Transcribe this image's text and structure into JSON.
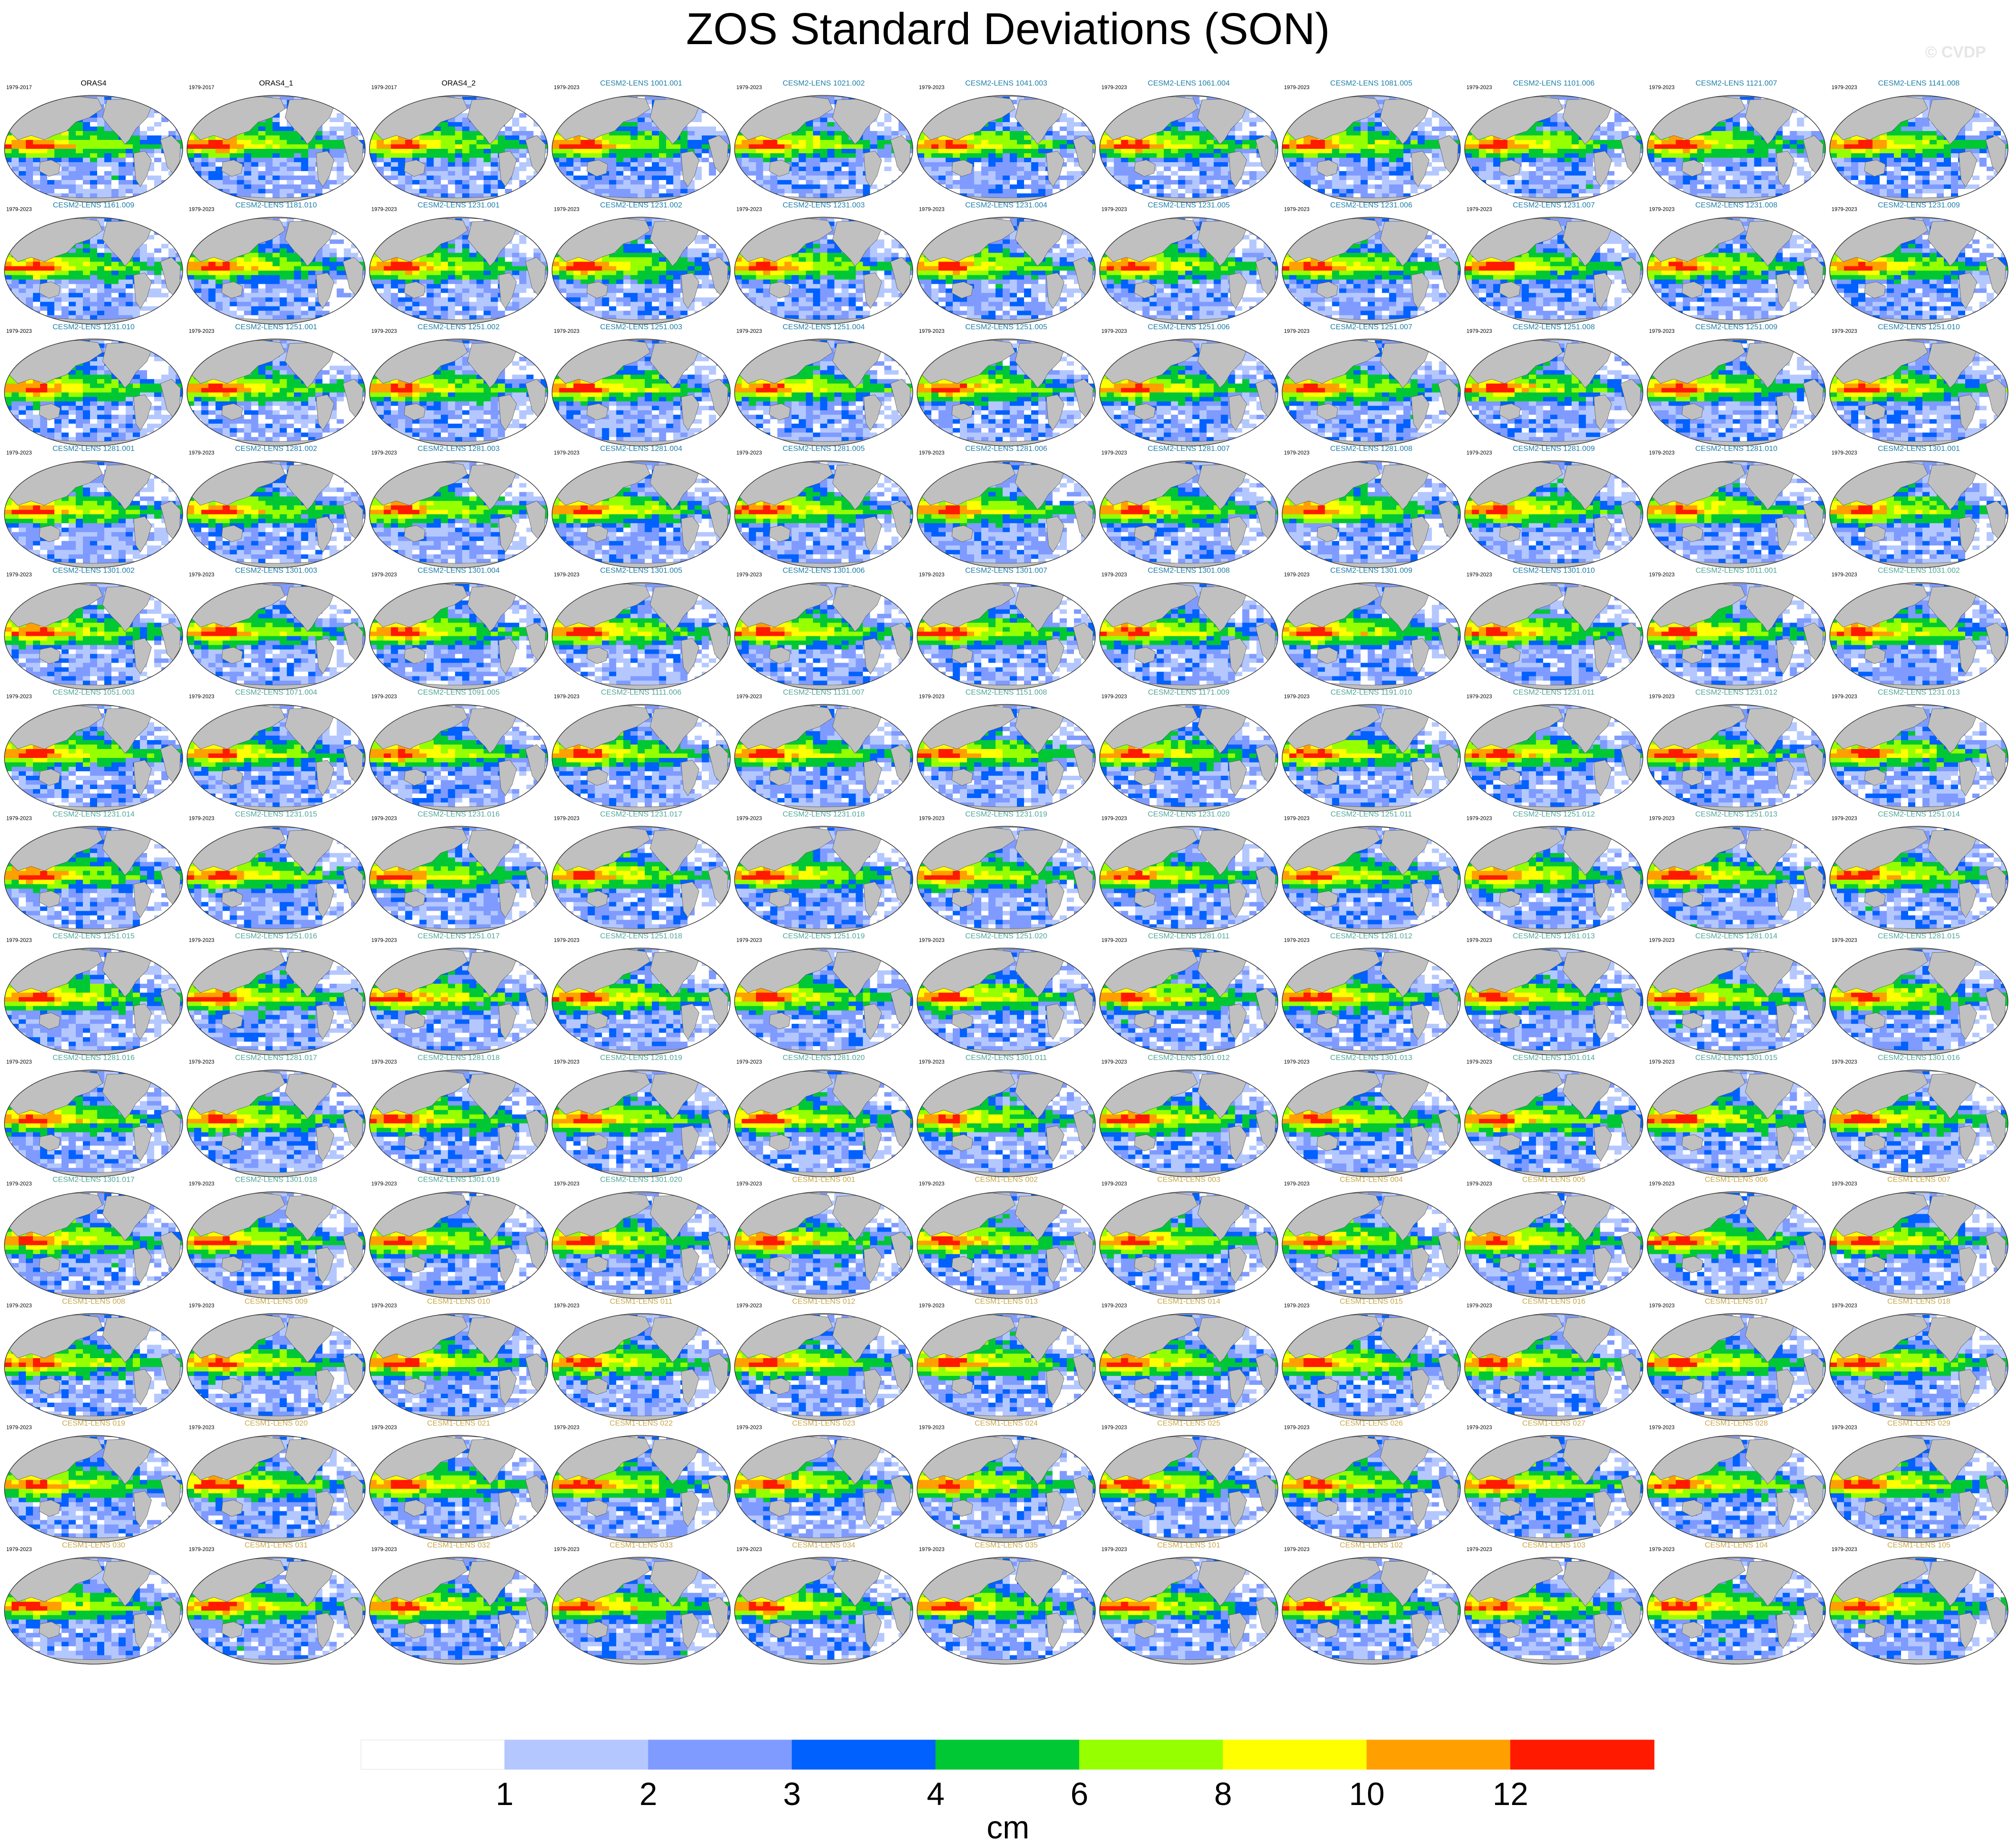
{
  "title": "ZOS Standard Deviations (SON)",
  "watermark": "© CVDP",
  "colors": {
    "obs_title": "#000000",
    "cesm2_title": "#1f7fa8",
    "cesm1_title": "#c8a84a",
    "cesm2_faded_title": "#4fa89a",
    "land": "#c0c0c0",
    "missing": "#ffffff"
  },
  "chart_data": {
    "type": "heatmap",
    "field": "ZOS standard deviation (SON), global maps",
    "grid": {
      "rows": 13,
      "cols": 11
    },
    "colorbar": {
      "unit_label": "cm",
      "levels": [
        1,
        2,
        3,
        4,
        6,
        8,
        10,
        12
      ],
      "tick_labels": [
        "1",
        "2",
        "3",
        "4",
        "6",
        "8",
        "10",
        "12"
      ],
      "colors": [
        "#ffffff",
        "#b4c8ff",
        "#7f9bff",
        "#0061ff",
        "#00c834",
        "#96ff00",
        "#ffff00",
        "#ffa000",
        "#ff1a00"
      ]
    },
    "panels": [
      {
        "title": "ORAS4",
        "period": "1979-2017",
        "group": "obs"
      },
      {
        "title": "ORAS4_1",
        "period": "1979-2017",
        "group": "obs"
      },
      {
        "title": "ORAS4_2",
        "period": "1979-2017",
        "group": "obs"
      },
      {
        "title": "CESM2-LENS 1001.001",
        "period": "1979-2023",
        "group": "cesm2"
      },
      {
        "title": "CESM2-LENS 1021.002",
        "period": "1979-2023",
        "group": "cesm2"
      },
      {
        "title": "CESM2-LENS 1041.003",
        "period": "1979-2023",
        "group": "cesm2"
      },
      {
        "title": "CESM2-LENS 1061.004",
        "period": "1979-2023",
        "group": "cesm2"
      },
      {
        "title": "CESM2-LENS 1081.005",
        "period": "1979-2023",
        "group": "cesm2"
      },
      {
        "title": "CESM2-LENS 1101.006",
        "period": "1979-2023",
        "group": "cesm2"
      },
      {
        "title": "CESM2-LENS 1121.007",
        "period": "1979-2023",
        "group": "cesm2"
      },
      {
        "title": "CESM2-LENS 1141.008",
        "period": "1979-2023",
        "group": "cesm2"
      },
      {
        "title": "CESM2-LENS 1161.009",
        "period": "1979-2023",
        "group": "cesm2"
      },
      {
        "title": "CESM2-LENS 1181.010",
        "period": "1979-2023",
        "group": "cesm2"
      },
      {
        "title": "CESM2-LENS 1231.001",
        "period": "1979-2023",
        "group": "cesm2"
      },
      {
        "title": "CESM2-LENS 1231.002",
        "period": "1979-2023",
        "group": "cesm2"
      },
      {
        "title": "CESM2-LENS 1231.003",
        "period": "1979-2023",
        "group": "cesm2"
      },
      {
        "title": "CESM2-LENS 1231.004",
        "period": "1979-2023",
        "group": "cesm2"
      },
      {
        "title": "CESM2-LENS 1231.005",
        "period": "1979-2023",
        "group": "cesm2"
      },
      {
        "title": "CESM2-LENS 1231.006",
        "period": "1979-2023",
        "group": "cesm2"
      },
      {
        "title": "CESM2-LENS 1231.007",
        "period": "1979-2023",
        "group": "cesm2"
      },
      {
        "title": "CESM2-LENS 1231.008",
        "period": "1979-2023",
        "group": "cesm2"
      },
      {
        "title": "CESM2-LENS 1231.009",
        "period": "1979-2023",
        "group": "cesm2"
      },
      {
        "title": "CESM2-LENS 1231.010",
        "period": "1979-2023",
        "group": "cesm2"
      },
      {
        "title": "CESM2-LENS 1251.001",
        "period": "1979-2023",
        "group": "cesm2"
      },
      {
        "title": "CESM2-LENS 1251.002",
        "period": "1979-2023",
        "group": "cesm2"
      },
      {
        "title": "CESM2-LENS 1251.003",
        "period": "1979-2023",
        "group": "cesm2"
      },
      {
        "title": "CESM2-LENS 1251.004",
        "period": "1979-2023",
        "group": "cesm2"
      },
      {
        "title": "CESM2-LENS 1251.005",
        "period": "1979-2023",
        "group": "cesm2"
      },
      {
        "title": "CESM2-LENS 1251.006",
        "period": "1979-2023",
        "group": "cesm2"
      },
      {
        "title": "CESM2-LENS 1251.007",
        "period": "1979-2023",
        "group": "cesm2"
      },
      {
        "title": "CESM2-LENS 1251.008",
        "period": "1979-2023",
        "group": "cesm2"
      },
      {
        "title": "CESM2-LENS 1251.009",
        "period": "1979-2023",
        "group": "cesm2"
      },
      {
        "title": "CESM2-LENS 1251.010",
        "period": "1979-2023",
        "group": "cesm2"
      },
      {
        "title": "CESM2-LENS 1281.001",
        "period": "1979-2023",
        "group": "cesm2"
      },
      {
        "title": "CESM2-LENS 1281.002",
        "period": "1979-2023",
        "group": "cesm2"
      },
      {
        "title": "CESM2-LENS 1281.003",
        "period": "1979-2023",
        "group": "cesm2"
      },
      {
        "title": "CESM2-LENS 1281.004",
        "period": "1979-2023",
        "group": "cesm2"
      },
      {
        "title": "CESM2-LENS 1281.005",
        "period": "1979-2023",
        "group": "cesm2"
      },
      {
        "title": "CESM2-LENS 1281.006",
        "period": "1979-2023",
        "group": "cesm2"
      },
      {
        "title": "CESM2-LENS 1281.007",
        "period": "1979-2023",
        "group": "cesm2"
      },
      {
        "title": "CESM2-LENS 1281.008",
        "period": "1979-2023",
        "group": "cesm2"
      },
      {
        "title": "CESM2-LENS 1281.009",
        "period": "1979-2023",
        "group": "cesm2"
      },
      {
        "title": "CESM2-LENS 1281.010",
        "period": "1979-2023",
        "group": "cesm2"
      },
      {
        "title": "CESM2-LENS 1301.001",
        "period": "1979-2023",
        "group": "cesm2"
      },
      {
        "title": "CESM2-LENS 1301.002",
        "period": "1979-2023",
        "group": "cesm2"
      },
      {
        "title": "CESM2-LENS 1301.003",
        "period": "1979-2023",
        "group": "cesm2"
      },
      {
        "title": "CESM2-LENS 1301.004",
        "period": "1979-2023",
        "group": "cesm2"
      },
      {
        "title": "CESM2-LENS 1301.005",
        "period": "1979-2023",
        "group": "cesm2"
      },
      {
        "title": "CESM2-LENS 1301.006",
        "period": "1979-2023",
        "group": "cesm2"
      },
      {
        "title": "CESM2-LENS 1301.007",
        "period": "1979-2023",
        "group": "cesm2"
      },
      {
        "title": "CESM2-LENS 1301.008",
        "period": "1979-2023",
        "group": "cesm2"
      },
      {
        "title": "CESM2-LENS 1301.009",
        "period": "1979-2023",
        "group": "cesm2"
      },
      {
        "title": "CESM2-LENS 1301.010",
        "period": "1979-2023",
        "group": "cesm2"
      },
      {
        "title": "CESM2-LENS 1011.001",
        "period": "1979-2023",
        "group": "cesm2b"
      },
      {
        "title": "CESM2-LENS 1031.002",
        "period": "1979-2023",
        "group": "cesm2b"
      },
      {
        "title": "CESM2-LENS 1051.003",
        "period": "1979-2023",
        "group": "cesm2b"
      },
      {
        "title": "CESM2-LENS 1071.004",
        "period": "1979-2023",
        "group": "cesm2b"
      },
      {
        "title": "CESM2-LENS 1091.005",
        "period": "1979-2023",
        "group": "cesm2b"
      },
      {
        "title": "CESM2-LENS 1111.006",
        "period": "1979-2023",
        "group": "cesm2b"
      },
      {
        "title": "CESM2-LENS 1131.007",
        "period": "1979-2023",
        "group": "cesm2b"
      },
      {
        "title": "CESM2-LENS 1151.008",
        "period": "1979-2023",
        "group": "cesm2b"
      },
      {
        "title": "CESM2-LENS 1171.009",
        "period": "1979-2023",
        "group": "cesm2b"
      },
      {
        "title": "CESM2-LENS 1191.010",
        "period": "1979-2023",
        "group": "cesm2b"
      },
      {
        "title": "CESM2-LENS 1231.011",
        "period": "1979-2023",
        "group": "cesm2b"
      },
      {
        "title": "CESM2-LENS 1231.012",
        "period": "1979-2023",
        "group": "cesm2b"
      },
      {
        "title": "CESM2-LENS 1231.013",
        "period": "1979-2023",
        "group": "cesm2b"
      },
      {
        "title": "CESM2-LENS 1231.014",
        "period": "1979-2023",
        "group": "cesm2b"
      },
      {
        "title": "CESM2-LENS 1231.015",
        "period": "1979-2023",
        "group": "cesm2b"
      },
      {
        "title": "CESM2-LENS 1231.016",
        "period": "1979-2023",
        "group": "cesm2b"
      },
      {
        "title": "CESM2-LENS 1231.017",
        "period": "1979-2023",
        "group": "cesm2b"
      },
      {
        "title": "CESM2-LENS 1231.018",
        "period": "1979-2023",
        "group": "cesm2b"
      },
      {
        "title": "CESM2-LENS 1231.019",
        "period": "1979-2023",
        "group": "cesm2b"
      },
      {
        "title": "CESM2-LENS 1231.020",
        "period": "1979-2023",
        "group": "cesm2b"
      },
      {
        "title": "CESM2-LENS 1251.011",
        "period": "1979-2023",
        "group": "cesm2b"
      },
      {
        "title": "CESM2-LENS 1251.012",
        "period": "1979-2023",
        "group": "cesm2b"
      },
      {
        "title": "CESM2-LENS 1251.013",
        "period": "1979-2023",
        "group": "cesm2b"
      },
      {
        "title": "CESM2-LENS 1251.014",
        "period": "1979-2023",
        "group": "cesm2b"
      },
      {
        "title": "CESM2-LENS 1251.015",
        "period": "1979-2023",
        "group": "cesm2b"
      },
      {
        "title": "CESM2-LENS 1251.016",
        "period": "1979-2023",
        "group": "cesm2b"
      },
      {
        "title": "CESM2-LENS 1251.017",
        "period": "1979-2023",
        "group": "cesm2b"
      },
      {
        "title": "CESM2-LENS 1251.018",
        "period": "1979-2023",
        "group": "cesm2b"
      },
      {
        "title": "CESM2-LENS 1251.019",
        "period": "1979-2023",
        "group": "cesm2b"
      },
      {
        "title": "CESM2-LENS 1251.020",
        "period": "1979-2023",
        "group": "cesm2b"
      },
      {
        "title": "CESM2-LENS 1281.011",
        "period": "1979-2023",
        "group": "cesm2b"
      },
      {
        "title": "CESM2-LENS 1281.012",
        "period": "1979-2023",
        "group": "cesm2b"
      },
      {
        "title": "CESM2-LENS 1281.013",
        "period": "1979-2023",
        "group": "cesm2b"
      },
      {
        "title": "CESM2-LENS 1281.014",
        "period": "1979-2023",
        "group": "cesm2b"
      },
      {
        "title": "CESM2-LENS 1281.015",
        "period": "1979-2023",
        "group": "cesm2b"
      },
      {
        "title": "CESM2-LENS 1281.016",
        "period": "1979-2023",
        "group": "cesm2b"
      },
      {
        "title": "CESM2-LENS 1281.017",
        "period": "1979-2023",
        "group": "cesm2b"
      },
      {
        "title": "CESM2-LENS 1281.018",
        "period": "1979-2023",
        "group": "cesm2b"
      },
      {
        "title": "CESM2-LENS 1281.019",
        "period": "1979-2023",
        "group": "cesm2b"
      },
      {
        "title": "CESM2-LENS 1281.020",
        "period": "1979-2023",
        "group": "cesm2b"
      },
      {
        "title": "CESM2-LENS 1301.011",
        "period": "1979-2023",
        "group": "cesm2b"
      },
      {
        "title": "CESM2-LENS 1301.012",
        "period": "1979-2023",
        "group": "cesm2b"
      },
      {
        "title": "CESM2-LENS 1301.013",
        "period": "1979-2023",
        "group": "cesm2b"
      },
      {
        "title": "CESM2-LENS 1301.014",
        "period": "1979-2023",
        "group": "cesm2b"
      },
      {
        "title": "CESM2-LENS 1301.015",
        "period": "1979-2023",
        "group": "cesm2b"
      },
      {
        "title": "CESM2-LENS 1301.016",
        "period": "1979-2023",
        "group": "cesm2b"
      },
      {
        "title": "CESM2-LENS 1301.017",
        "period": "1979-2023",
        "group": "cesm2b"
      },
      {
        "title": "CESM2-LENS 1301.018",
        "period": "1979-2023",
        "group": "cesm2b"
      },
      {
        "title": "CESM2-LENS 1301.019",
        "period": "1979-2023",
        "group": "cesm2b"
      },
      {
        "title": "CESM2-LENS 1301.020",
        "period": "1979-2023",
        "group": "cesm2b"
      },
      {
        "title": "CESM1-LENS 001",
        "period": "1979-2023",
        "group": "cesm1"
      },
      {
        "title": "CESM1-LENS 002",
        "period": "1979-2023",
        "group": "cesm1"
      },
      {
        "title": "CESM1-LENS 003",
        "period": "1979-2023",
        "group": "cesm1"
      },
      {
        "title": "CESM1-LENS 004",
        "period": "1979-2023",
        "group": "cesm1"
      },
      {
        "title": "CESM1-LENS 005",
        "period": "1979-2023",
        "group": "cesm1"
      },
      {
        "title": "CESM1-LENS 006",
        "period": "1979-2023",
        "group": "cesm1"
      },
      {
        "title": "CESM1-LENS 007",
        "period": "1979-2023",
        "group": "cesm1"
      },
      {
        "title": "CESM1-LENS 008",
        "period": "1979-2023",
        "group": "cesm1"
      },
      {
        "title": "CESM1-LENS 009",
        "period": "1979-2023",
        "group": "cesm1"
      },
      {
        "title": "CESM1-LENS 010",
        "period": "1979-2023",
        "group": "cesm1"
      },
      {
        "title": "CESM1-LENS 011",
        "period": "1979-2023",
        "group": "cesm1"
      },
      {
        "title": "CESM1-LENS 012",
        "period": "1979-2023",
        "group": "cesm1"
      },
      {
        "title": "CESM1-LENS 013",
        "period": "1979-2023",
        "group": "cesm1"
      },
      {
        "title": "CESM1-LENS 014",
        "period": "1979-2023",
        "group": "cesm1"
      },
      {
        "title": "CESM1-LENS 015",
        "period": "1979-2023",
        "group": "cesm1"
      },
      {
        "title": "CESM1-LENS 016",
        "period": "1979-2023",
        "group": "cesm1"
      },
      {
        "title": "CESM1-LENS 017",
        "period": "1979-2023",
        "group": "cesm1"
      },
      {
        "title": "CESM1-LENS 018",
        "period": "1979-2023",
        "group": "cesm1"
      },
      {
        "title": "CESM1-LENS 019",
        "period": "1979-2023",
        "group": "cesm1"
      },
      {
        "title": "CESM1-LENS 020",
        "period": "1979-2023",
        "group": "cesm1"
      },
      {
        "title": "CESM1-LENS 021",
        "period": "1979-2023",
        "group": "cesm1"
      },
      {
        "title": "CESM1-LENS 022",
        "period": "1979-2023",
        "group": "cesm1"
      },
      {
        "title": "CESM1-LENS 023",
        "period": "1979-2023",
        "group": "cesm1"
      },
      {
        "title": "CESM1-LENS 024",
        "period": "1979-2023",
        "group": "cesm1"
      },
      {
        "title": "CESM1-LENS 025",
        "period": "1979-2023",
        "group": "cesm1"
      },
      {
        "title": "CESM1-LENS 026",
        "period": "1979-2023",
        "group": "cesm1"
      },
      {
        "title": "CESM1-LENS 027",
        "period": "1979-2023",
        "group": "cesm1"
      },
      {
        "title": "CESM1-LENS 028",
        "period": "1979-2023",
        "group": "cesm1"
      },
      {
        "title": "CESM1-LENS 029",
        "period": "1979-2023",
        "group": "cesm1"
      },
      {
        "title": "CESM1-LENS 030",
        "period": "1979-2023",
        "group": "cesm1"
      },
      {
        "title": "CESM1-LENS 031",
        "period": "1979-2023",
        "group": "cesm1"
      },
      {
        "title": "CESM1-LENS 032",
        "period": "1979-2023",
        "group": "cesm1"
      },
      {
        "title": "CESM1-LENS 033",
        "period": "1979-2023",
        "group": "cesm1"
      },
      {
        "title": "CESM1-LENS 034",
        "period": "1979-2023",
        "group": "cesm1"
      },
      {
        "title": "CESM1-LENS 035",
        "period": "1979-2023",
        "group": "cesm1"
      },
      {
        "title": "CESM1-LENS 101",
        "period": "1979-2023",
        "group": "cesm1"
      },
      {
        "title": "CESM1-LENS 102",
        "period": "1979-2023",
        "group": "cesm1"
      },
      {
        "title": "CESM1-LENS 103",
        "period": "1979-2023",
        "group": "cesm1"
      },
      {
        "title": "CESM1-LENS 104",
        "period": "1979-2023",
        "group": "cesm1"
      },
      {
        "title": "CESM1-LENS 105",
        "period": "1979-2023",
        "group": "cesm1"
      }
    ]
  }
}
